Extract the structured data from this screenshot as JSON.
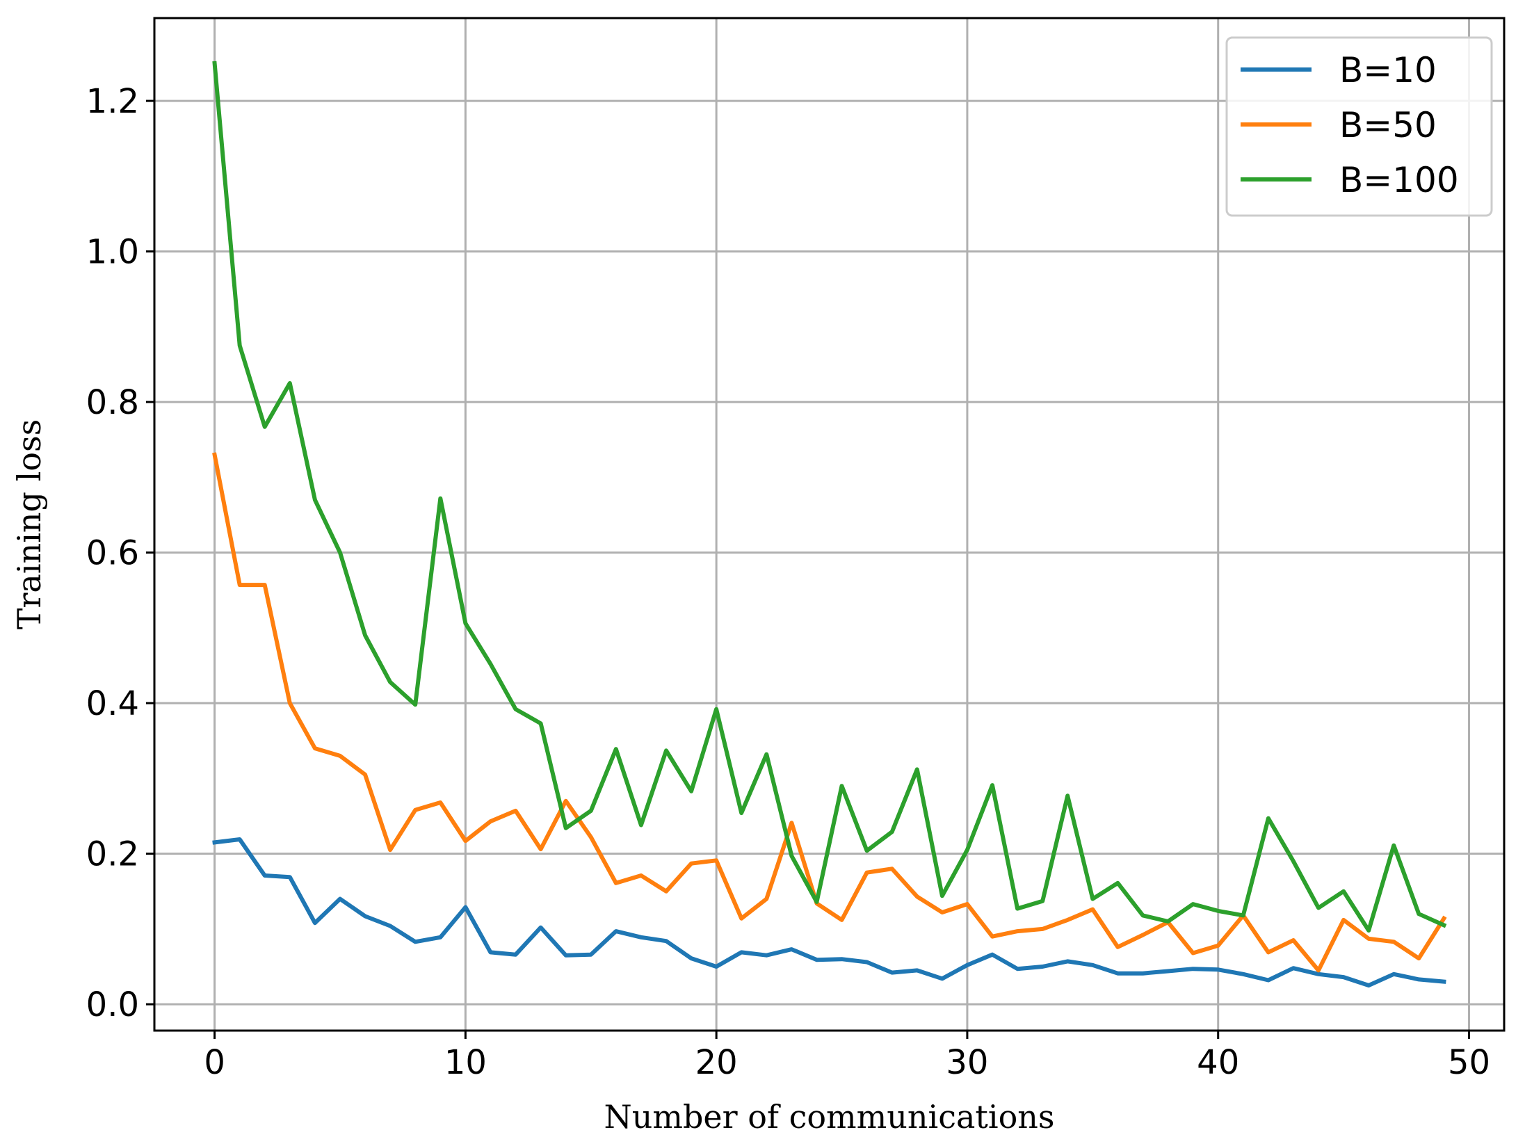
{
  "chart_data": {
    "type": "line",
    "title": "",
    "xlabel": "Number of communications",
    "ylabel": "Training loss",
    "xlim": [
      -2.4,
      51.4
    ],
    "ylim": [
      -0.035,
      1.31
    ],
    "xticks": [
      0,
      10,
      20,
      30,
      40,
      50
    ],
    "xtick_labels": [
      "0",
      "10",
      "20",
      "30",
      "40",
      "50"
    ],
    "yticks": [
      0.0,
      0.2,
      0.4,
      0.6,
      0.8,
      1.0,
      1.2
    ],
    "ytick_labels": [
      "0.0",
      "0.2",
      "0.4",
      "0.6",
      "0.8",
      "1.0",
      "1.2"
    ],
    "grid": true,
    "legend_position": "top-right",
    "x": [
      0,
      1,
      2,
      3,
      4,
      5,
      6,
      7,
      8,
      9,
      10,
      11,
      12,
      13,
      14,
      15,
      16,
      17,
      18,
      19,
      20,
      21,
      22,
      23,
      24,
      25,
      26,
      27,
      28,
      29,
      30,
      31,
      32,
      33,
      34,
      35,
      36,
      37,
      38,
      39,
      40,
      41,
      42,
      43,
      44,
      45,
      46,
      47,
      48,
      49
    ],
    "series": [
      {
        "name": "B=10",
        "color": "#1f77b4",
        "values": [
          0.215,
          0.219,
          0.171,
          0.169,
          0.108,
          0.14,
          0.117,
          0.104,
          0.083,
          0.089,
          0.129,
          0.069,
          0.066,
          0.102,
          0.065,
          0.066,
          0.097,
          0.089,
          0.084,
          0.061,
          0.05,
          0.069,
          0.065,
          0.073,
          0.059,
          0.06,
          0.056,
          0.042,
          0.045,
          0.034,
          0.052,
          0.066,
          0.047,
          0.05,
          0.057,
          0.052,
          0.041,
          0.041,
          0.044,
          0.047,
          0.046,
          0.04,
          0.032,
          0.048,
          0.04,
          0.036,
          0.025,
          0.04,
          0.033,
          0.03
        ]
      },
      {
        "name": "B=50",
        "color": "#ff7f0e",
        "values": [
          0.73,
          0.557,
          0.557,
          0.4,
          0.34,
          0.33,
          0.305,
          0.205,
          0.258,
          0.268,
          0.217,
          0.243,
          0.257,
          0.206,
          0.27,
          0.222,
          0.161,
          0.171,
          0.15,
          0.187,
          0.191,
          0.114,
          0.14,
          0.241,
          0.134,
          0.112,
          0.175,
          0.18,
          0.143,
          0.122,
          0.133,
          0.09,
          0.097,
          0.1,
          0.112,
          0.126,
          0.076,
          0.092,
          0.109,
          0.068,
          0.078,
          0.118,
          0.069,
          0.085,
          0.045,
          0.112,
          0.087,
          0.083,
          0.061,
          0.114
        ]
      },
      {
        "name": "B=100",
        "color": "#2ca02c",
        "values": [
          1.25,
          0.875,
          0.767,
          0.825,
          0.67,
          0.6,
          0.49,
          0.428,
          0.398,
          0.672,
          0.506,
          0.452,
          0.392,
          0.373,
          0.234,
          0.257,
          0.339,
          0.238,
          0.337,
          0.283,
          0.392,
          0.254,
          0.332,
          0.197,
          0.136,
          0.29,
          0.204,
          0.229,
          0.312,
          0.144,
          0.205,
          0.291,
          0.127,
          0.137,
          0.277,
          0.14,
          0.161,
          0.118,
          0.11,
          0.133,
          0.124,
          0.118,
          0.247,
          0.19,
          0.128,
          0.15,
          0.098,
          0.211,
          0.12,
          0.105
        ]
      }
    ]
  }
}
